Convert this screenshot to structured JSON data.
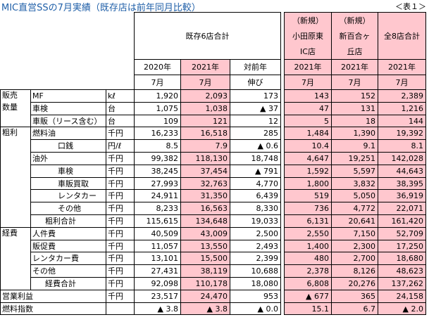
{
  "title": "MIC直営SSの7月実績（既存店は前年同月比較）",
  "table_no": "＜表１＞",
  "headers": {
    "existing_group": "既存6店合計",
    "new1_tag": "（新規）",
    "new1_name1": "小田原東",
    "new1_name2": "IC店",
    "new2_tag": "（新規）",
    "new2_name1": "新百合ヶ",
    "new2_name2": "丘店",
    "all_group": "全8店合計",
    "y2020": "2020年",
    "y2021": "2021年",
    "yoy1": "対前年",
    "yoy2": "伸び",
    "month": "7月"
  },
  "groups": {
    "hanbai1": "販売",
    "hanbai2": "数量",
    "arari": "粗利",
    "keihi": "経費"
  },
  "rows": [
    {
      "label": "MF",
      "unit": "kℓ",
      "v": [
        "1,920",
        "2,093",
        "173",
        "143",
        "152",
        "2,389"
      ]
    },
    {
      "label": "車検",
      "unit": "台",
      "v": [
        "1,075",
        "1,038",
        "▲ 37",
        "47",
        "131",
        "1,216"
      ]
    },
    {
      "label": "車販（リース含む）",
      "unit": "台",
      "v": [
        "109",
        "121",
        "12",
        "5",
        "18",
        "144"
      ]
    },
    {
      "label": "燃料油",
      "unit": "千円",
      "v": [
        "16,233",
        "16,518",
        "285",
        "1,484",
        "1,390",
        "19,392"
      ]
    },
    {
      "label": "口銭",
      "unit": "円/ℓ",
      "v": [
        "8.5",
        "7.9",
        "▲ 0.6",
        "10.4",
        "9.1",
        "8.1"
      ]
    },
    {
      "label": "油外",
      "unit": "千円",
      "v": [
        "99,382",
        "118,130",
        "18,748",
        "4,647",
        "19,251",
        "142,028"
      ]
    },
    {
      "label": "車検",
      "unit": "千円",
      "v": [
        "38,245",
        "37,454",
        "▲ 791",
        "1,592",
        "5,597",
        "44,643"
      ]
    },
    {
      "label": "車販買取",
      "unit": "千円",
      "v": [
        "27,993",
        "32,763",
        "4,770",
        "1,800",
        "3,832",
        "38,395"
      ]
    },
    {
      "label": "レンタカー",
      "unit": "千円",
      "v": [
        "24,911",
        "31,350",
        "6,439",
        "519",
        "5,050",
        "36,919"
      ]
    },
    {
      "label": "その他",
      "unit": "千円",
      "v": [
        "8,233",
        "16,563",
        "8,330",
        "736",
        "4,772",
        "22,071"
      ]
    },
    {
      "label": "粗利合計",
      "unit": "千円",
      "v": [
        "115,615",
        "134,648",
        "19,033",
        "6,131",
        "20,641",
        "161,420"
      ]
    },
    {
      "label": "人件費",
      "unit": "千円",
      "v": [
        "40,509",
        "43,009",
        "2,500",
        "2,550",
        "7,150",
        "52,709"
      ]
    },
    {
      "label": "販促費",
      "unit": "千円",
      "v": [
        "11,057",
        "13,550",
        "2,493",
        "1,400",
        "2,300",
        "17,250"
      ]
    },
    {
      "label": "レンタカー費",
      "unit": "千円",
      "v": [
        "13,101",
        "15,500",
        "2,399",
        "480",
        "2,700",
        "18,680"
      ]
    },
    {
      "label": "その他",
      "unit": "千円",
      "v": [
        "27,431",
        "38,119",
        "10,688",
        "2,378",
        "8,126",
        "48,623"
      ]
    },
    {
      "label": "経費合計",
      "unit": "千円",
      "v": [
        "92,098",
        "110,178",
        "18,080",
        "6,808",
        "20,276",
        "137,262"
      ]
    },
    {
      "label": "営業利益",
      "unit": "千円",
      "v": [
        "23,517",
        "24,470",
        "953",
        "▲ 677",
        "365",
        "24,158"
      ]
    },
    {
      "label": "燃料指数",
      "unit": "",
      "v": [
        "▲ 3.8",
        "▲ 3.8",
        "▲ 0.0",
        "15.1",
        "6.7",
        "▲ 2.0"
      ]
    }
  ]
}
